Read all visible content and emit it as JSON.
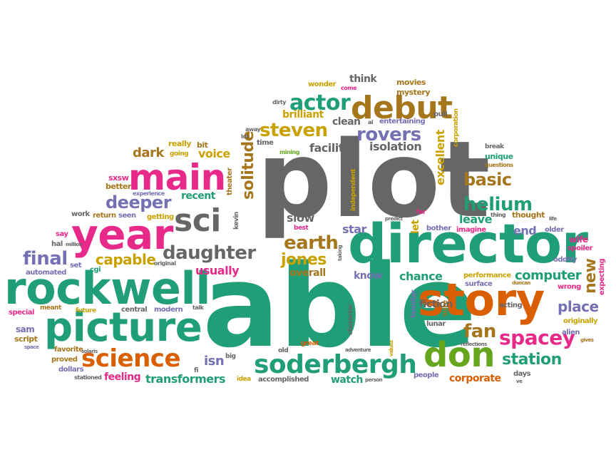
{
  "cloud": {
    "colors": {
      "teal": "#1f9e77",
      "orange": "#d95f02",
      "pink": "#e7298a",
      "purple": "#7570b3",
      "gray": "#666666",
      "mustard": "#c9a200",
      "brown": "#a6761d",
      "lime": "#66a61e"
    },
    "words": {
      "plot": "plot",
      "able": "able",
      "director": "director",
      "rockwell": "rockwell",
      "picture": "picture",
      "story": "story",
      "year": "year",
      "main": "main",
      "debut": "debut",
      "soderbergh": "soderbergh",
      "don": "don",
      "science": "science",
      "sci": "sci",
      "spacey": "spacey",
      "actor": "actor",
      "steven": "steven",
      "rovers": "rovers",
      "helium": "helium",
      "daughter": "daughter",
      "earth": "earth",
      "jones": "jones",
      "deeper": "deeper",
      "final": "final",
      "capable": "capable",
      "solitude": "solitude",
      "basic": "basic",
      "station": "station",
      "fan": "fan",
      "place": "place",
      "computer": "computer",
      "transformers": "transformers",
      "isolation": "isolation",
      "facility": "facility",
      "excellent": "excellent",
      "chance": "chance",
      "new": "new",
      "leave": "leave",
      "end": "end",
      "usually": "usually",
      "overall": "overall",
      "know": "know",
      "star": "star",
      "slow": "slow",
      "dark": "dark",
      "voice": "voice",
      "recent": "recent",
      "fiction": "fiction",
      "feeling": "feeling",
      "watch": "watch",
      "corporate": "corporate",
      "brilliant": "brilliant",
      "clean": "clean",
      "think": "think",
      "movies": "movies",
      "mystery": "mystery",
      "entertaining": "entertaining",
      "wonder": "wonder",
      "come": "come",
      "pull": "pull",
      "corporation": "corporation",
      "break": "break",
      "unique": "unique",
      "questions": "questions",
      "time": "time",
      "mining": "mining",
      "lot": "lot",
      "away": "away",
      "dirty": "dirty",
      "ai": "ai",
      "really": "really",
      "bit": "bit",
      "going": "going",
      "sxsw": "sxsw",
      "better": "better",
      "experience": "experience",
      "theater": "theater",
      "independent": "independent",
      "hr": "hr",
      "work": "work",
      "return": "return",
      "seen": "seen",
      "getting": "getting",
      "kevin": "kevin",
      "say": "say",
      "hal": "hal",
      "million": "million",
      "automated": "automated",
      "set": "set",
      "cgi": "cgi",
      "original": "original",
      "special": "special",
      "meant": "meant",
      "future": "future",
      "central": "central",
      "modern": "modern",
      "talk": "talk",
      "sam": "sam",
      "script": "script",
      "space": "space",
      "favorite": "favorite",
      "solaris": "solaris",
      "proved": "proved",
      "dollars": "dollars",
      "stationed": "stationed",
      "fi": "fi",
      "big": "big",
      "isn": "isn",
      "idea": "idea",
      "accomplished": "accomplished",
      "old": "old",
      "great": "great",
      "adventure": "adventure",
      "person": "person",
      "people": "people",
      "character": "character",
      "taking": "taking",
      "let": "let",
      "best": "best",
      "far": "far",
      "predict": "predict",
      "bother": "bother",
      "imagine": "imagine",
      "thing": "thing",
      "thought": "thought",
      "life": "life",
      "older": "older",
      "wife": "wife",
      "spoiler": "spoiler",
      "oddity": "oddity",
      "performance": "performance",
      "duncan": "duncan",
      "surface": "surface",
      "wrong": "wrong",
      "acting": "acting",
      "originally": "originally",
      "alien": "alien",
      "gives": "gives",
      "expecting": "expecting",
      "familiar": "familiar",
      "sure": "sure",
      "lunar": "lunar",
      "reflections": "reflections",
      "days": "days",
      "ve": "ve",
      "values": "values"
    }
  }
}
